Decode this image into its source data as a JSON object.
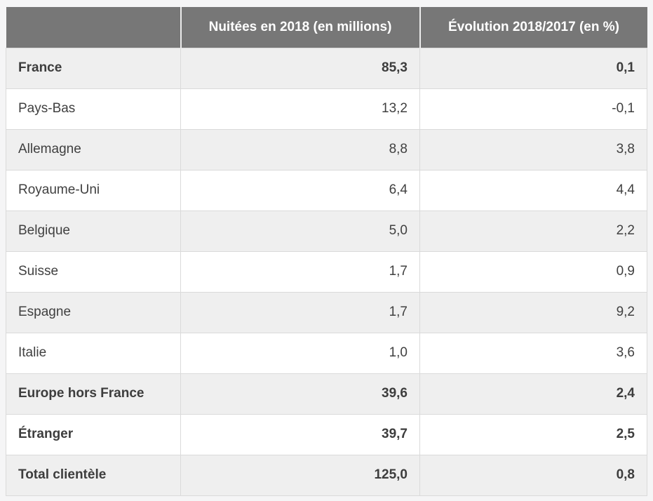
{
  "page": {
    "background": "#f5f5f6"
  },
  "table": {
    "header": {
      "background": "#777777",
      "text_color": "#ffffff",
      "columns": [
        "",
        "Nuitées en 2018 (en millions)",
        "Évolution 2018/2017 (en %)"
      ]
    },
    "colors": {
      "row_stripe": "#efefef",
      "row_white": "#ffffff",
      "border": "#dadada",
      "text": "#404040"
    },
    "rows": [
      {
        "label": "France",
        "nuitees": "85,3",
        "evolution": "0,1",
        "bold": true
      },
      {
        "label": "Pays-Bas",
        "nuitees": "13,2",
        "evolution": "-0,1",
        "bold": false
      },
      {
        "label": "Allemagne",
        "nuitees": "8,8",
        "evolution": "3,8",
        "bold": false
      },
      {
        "label": "Royaume-Uni",
        "nuitees": "6,4",
        "evolution": "4,4",
        "bold": false
      },
      {
        "label": "Belgique",
        "nuitees": "5,0",
        "evolution": "2,2",
        "bold": false
      },
      {
        "label": "Suisse",
        "nuitees": "1,7",
        "evolution": "0,9",
        "bold": false
      },
      {
        "label": "Espagne",
        "nuitees": "1,7",
        "evolution": "9,2",
        "bold": false
      },
      {
        "label": "Italie",
        "nuitees": "1,0",
        "evolution": "3,6",
        "bold": false
      },
      {
        "label": "Europe hors France",
        "nuitees": "39,6",
        "evolution": "2,4",
        "bold": true
      },
      {
        "label": "Étranger",
        "nuitees": "39,7",
        "evolution": "2,5",
        "bold": true
      },
      {
        "label": "Total clientèle",
        "nuitees": "125,0",
        "evolution": "0,8",
        "bold": true
      }
    ]
  },
  "chart_data": {
    "type": "table",
    "columns": [
      "",
      "Nuitées en 2018 (en millions)",
      "Évolution 2018/2017 (en %)"
    ],
    "rows": [
      [
        "France",
        85.3,
        0.1
      ],
      [
        "Pays-Bas",
        13.2,
        -0.1
      ],
      [
        "Allemagne",
        8.8,
        3.8
      ],
      [
        "Royaume-Uni",
        6.4,
        4.4
      ],
      [
        "Belgique",
        5.0,
        2.2
      ],
      [
        "Suisse",
        1.7,
        0.9
      ],
      [
        "Espagne",
        1.7,
        9.2
      ],
      [
        "Italie",
        1.0,
        3.6
      ],
      [
        "Europe hors France",
        39.6,
        2.4
      ],
      [
        "Étranger",
        39.7,
        2.5
      ],
      [
        "Total clientèle",
        125.0,
        0.8
      ]
    ],
    "notes": "Decimal comma formatting (French locale); bold rows: France, Europe hors France, Étranger, Total clientèle"
  }
}
